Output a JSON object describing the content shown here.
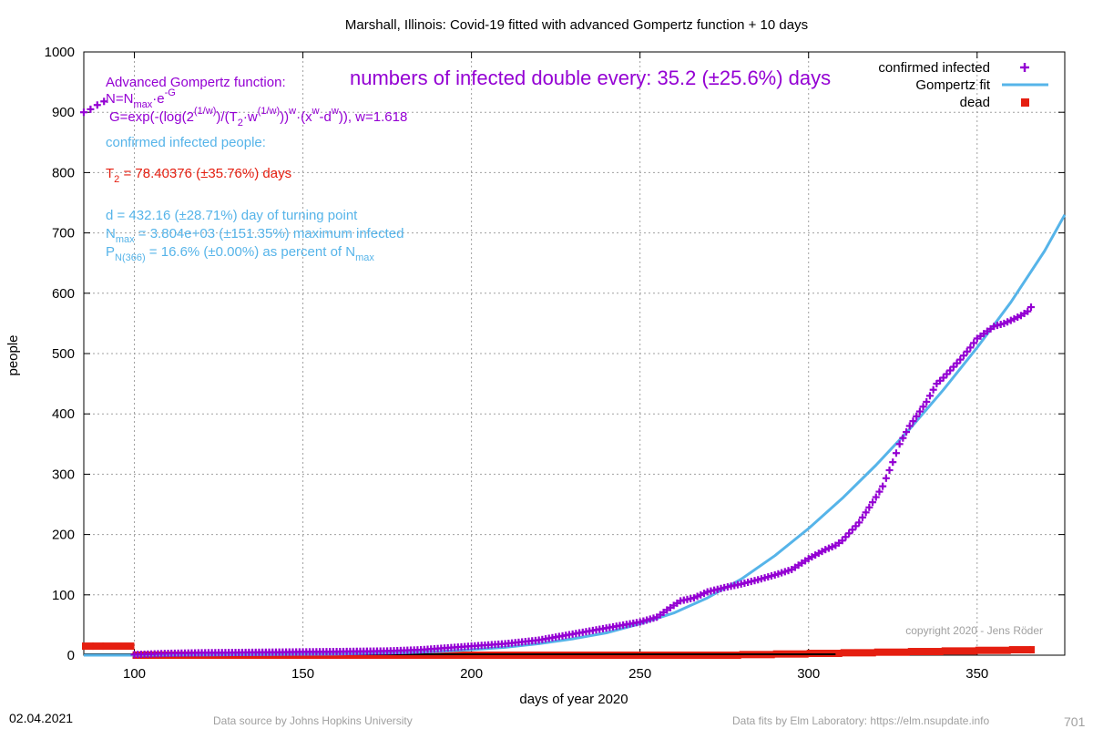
{
  "colors": {
    "confirmed": "#9400d3",
    "fit": "#56b4e9",
    "dead": "#e51e10",
    "grid": "#a0a0a0",
    "axis": "#000000"
  },
  "footer": {
    "date": "02.04.2021",
    "source": "Data source by Johns Hopkins University",
    "fits": "Data fits by Elm Laboratory: https://elm.nsupdate.info",
    "number": "701"
  },
  "annotations": {
    "func_title": "Advanced Gompertz function:",
    "f1_a": "N=N",
    "f1_sub": "max",
    "f1_b": "·e",
    "f1_sup": "-G",
    "f2_a": "G=exp(-(log(2",
    "f2_sup1": "(1/w)",
    "f2_b": ")/(T",
    "f2_sub": "2",
    "f2_c": "·w",
    "f2_sup2": "(1/w)",
    "f2_d": "))",
    "f2_sup3": "w",
    "f2_e": "·(x",
    "f2_sup4": "w",
    "f2_f": "-d",
    "f2_sup5": "w",
    "f2_g": ")), w=1.618",
    "confirmed_header": "confirmed infected people:",
    "t2_a": "T",
    "t2_sub": "2",
    "t2_b": " = 78.40376 (±35.76%) days",
    "turning": "d = 432.16 (±28.71%) day of turning point",
    "nmax_a": "N",
    "nmax_sub": "max",
    "nmax_b": " = 3.804e+03 (±151.35%) maximum infected",
    "pn_a": "P",
    "pn_sub": "N(366)",
    "pn_b": " = 16.6% (±0.00%) as percent of N",
    "pn_sub2": "max",
    "doubling": "numbers of infected double every: 35.2 (±25.6%) days",
    "copyright": "copyright 2020 - Jens Röder"
  },
  "chart_data": {
    "type": "scatter",
    "title": "Marshall,  Illinois: Covid-19 fitted with advanced Gompertz function + 10 days",
    "xlabel": "days of year 2020",
    "ylabel": "people",
    "xlim": [
      85,
      376
    ],
    "ylim": [
      0,
      1000
    ],
    "xticks": [
      100,
      150,
      200,
      250,
      300,
      350
    ],
    "yticks": [
      0,
      100,
      200,
      300,
      400,
      500,
      600,
      700,
      800,
      900,
      1000
    ],
    "grid": true,
    "legend_position": "top-right",
    "series": [
      {
        "name": "confirmed infected",
        "style": "points-plus",
        "x": [
          85,
          87,
          89,
          91,
          100,
          110,
          120,
          140,
          160,
          175,
          180,
          185,
          190,
          195,
          200,
          205,
          210,
          215,
          220,
          225,
          230,
          235,
          240,
          245,
          250,
          255,
          258,
          262,
          266,
          270,
          275,
          280,
          285,
          290,
          295,
          300,
          305,
          308,
          310,
          315,
          318,
          320,
          322,
          325,
          327,
          330,
          335,
          338,
          340,
          345,
          348,
          350,
          355,
          358,
          360,
          363,
          365,
          366
        ],
        "y": [
          900,
          905,
          912,
          918,
          1,
          3,
          4,
          5,
          6,
          7,
          8,
          9,
          11,
          13,
          15,
          17,
          19,
          22,
          25,
          30,
          35,
          40,
          45,
          50,
          55,
          63,
          75,
          90,
          95,
          105,
          112,
          118,
          125,
          133,
          142,
          160,
          175,
          182,
          190,
          220,
          245,
          262,
          280,
          320,
          350,
          380,
          420,
          450,
          460,
          490,
          510,
          525,
          545,
          550,
          555,
          563,
          570,
          577
        ]
      },
      {
        "name": "Gompertz fit",
        "style": "line",
        "x": [
          85,
          100,
          120,
          140,
          160,
          180,
          190,
          200,
          210,
          220,
          230,
          240,
          250,
          260,
          270,
          280,
          290,
          300,
          310,
          320,
          330,
          340,
          350,
          360,
          370,
          376
        ],
        "y": [
          0,
          0,
          0.5,
          1,
          2,
          4,
          6,
          9,
          13,
          19,
          27,
          37,
          52,
          70,
          95,
          126,
          165,
          210,
          260,
          315,
          375,
          440,
          510,
          585,
          670,
          730
        ]
      },
      {
        "name": "dead",
        "style": "points-square",
        "x": [
          85,
          88,
          91,
          100,
          150,
          200,
          250,
          280,
          290,
          300,
          310,
          320,
          330,
          340,
          350,
          360,
          366
        ],
        "y": [
          15,
          15,
          15,
          0,
          0,
          0,
          0,
          1,
          2,
          3,
          4,
          5,
          6,
          7,
          8,
          9,
          9
        ]
      }
    ]
  }
}
